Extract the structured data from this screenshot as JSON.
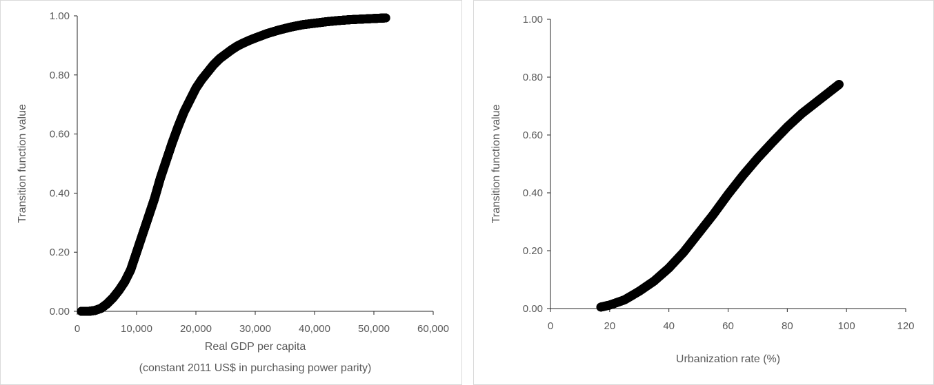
{
  "chart_data": [
    {
      "type": "scatter",
      "title": "",
      "ylabel": "Transition function value",
      "xlabel_lines": [
        "Real GDP per capita",
        "(constant 2011 US$ in purchasing power parity)"
      ],
      "xlim": [
        0,
        60000
      ],
      "ylim": [
        0,
        1
      ],
      "xticks": [
        0,
        10000,
        20000,
        30000,
        40000,
        50000,
        60000
      ],
      "xtick_labels": [
        "0",
        "10,000",
        "20,000",
        "30,000",
        "40,000",
        "50,000",
        "60,000"
      ],
      "yticks": [
        0,
        0.2,
        0.4,
        0.6,
        0.8,
        1.0
      ],
      "ytick_labels": [
        "0.00",
        "0.20",
        "0.40",
        "0.60",
        "0.80",
        "1.00"
      ],
      "grid": false,
      "legend": "none",
      "marker_color": "#000000",
      "series": [
        {
          "x": [
            700,
            2000,
            3000,
            4000,
            5000,
            6000,
            7000,
            8000,
            9000,
            10000,
            11000,
            12000,
            13000,
            14000,
            15000,
            16000,
            17000,
            18000,
            19000,
            20000,
            21000,
            22000,
            23000,
            24000,
            25000,
            26000,
            27000,
            28000,
            29000,
            30000,
            32000,
            34000,
            36000,
            38000,
            40000,
            42000,
            44000,
            46000,
            48000,
            50000,
            52000
          ],
          "y": [
            0.0,
            0.0,
            0.003,
            0.01,
            0.025,
            0.045,
            0.07,
            0.1,
            0.14,
            0.2,
            0.26,
            0.32,
            0.38,
            0.45,
            0.51,
            0.57,
            0.625,
            0.675,
            0.715,
            0.755,
            0.785,
            0.81,
            0.835,
            0.855,
            0.87,
            0.885,
            0.898,
            0.908,
            0.917,
            0.925,
            0.94,
            0.952,
            0.962,
            0.97,
            0.975,
            0.98,
            0.984,
            0.987,
            0.989,
            0.991,
            0.993
          ]
        }
      ]
    },
    {
      "type": "scatter",
      "title": "",
      "ylabel": "Transition function value",
      "xlabel_lines": [
        "Urbanization rate (%)"
      ],
      "xlim": [
        0,
        120
      ],
      "ylim": [
        0,
        1
      ],
      "xticks": [
        0,
        20,
        40,
        60,
        80,
        100,
        120
      ],
      "xtick_labels": [
        "0",
        "20",
        "40",
        "60",
        "80",
        "100",
        "120"
      ],
      "yticks": [
        0,
        0.2,
        0.4,
        0.6,
        0.8,
        1.0
      ],
      "ytick_labels": [
        "0.00",
        "0.20",
        "0.40",
        "0.60",
        "0.80",
        "1.00"
      ],
      "grid": false,
      "legend": "none",
      "marker_color": "#000000",
      "series": [
        {
          "x": [
            17,
            20,
            25,
            30,
            35,
            40,
            45,
            50,
            55,
            60,
            65,
            70,
            75,
            80,
            85,
            90,
            95,
            97.5
          ],
          "y": [
            0.005,
            0.012,
            0.03,
            0.06,
            0.095,
            0.14,
            0.195,
            0.26,
            0.325,
            0.395,
            0.46,
            0.52,
            0.575,
            0.628,
            0.675,
            0.715,
            0.755,
            0.775
          ]
        }
      ]
    }
  ]
}
